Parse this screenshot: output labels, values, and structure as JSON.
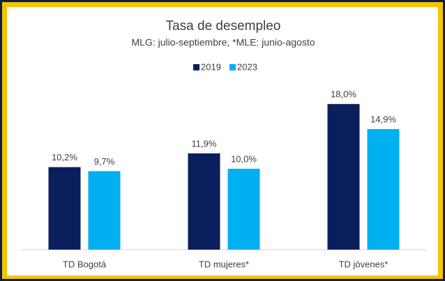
{
  "chart_data": {
    "type": "bar",
    "title": "Tasa de desempleo",
    "subtitle": "MLG: julio-septiembre, *MLE: junio-agosto",
    "categories": [
      "TD Bogotá",
      "TD mujeres*",
      "TD jóvenes*"
    ],
    "series": [
      {
        "name": "2019",
        "color": "#0b1f5c",
        "values": [
          10.2,
          11.9,
          18.0
        ],
        "value_labels": [
          "10,2%",
          "11,9%",
          "18,0%"
        ]
      },
      {
        "name": "2023",
        "color": "#00b0f0",
        "values": [
          9.7,
          10.0,
          14.9
        ],
        "value_labels": [
          "9,7%",
          "10,0%",
          "14,9%"
        ]
      }
    ],
    "legend": "top"
  }
}
